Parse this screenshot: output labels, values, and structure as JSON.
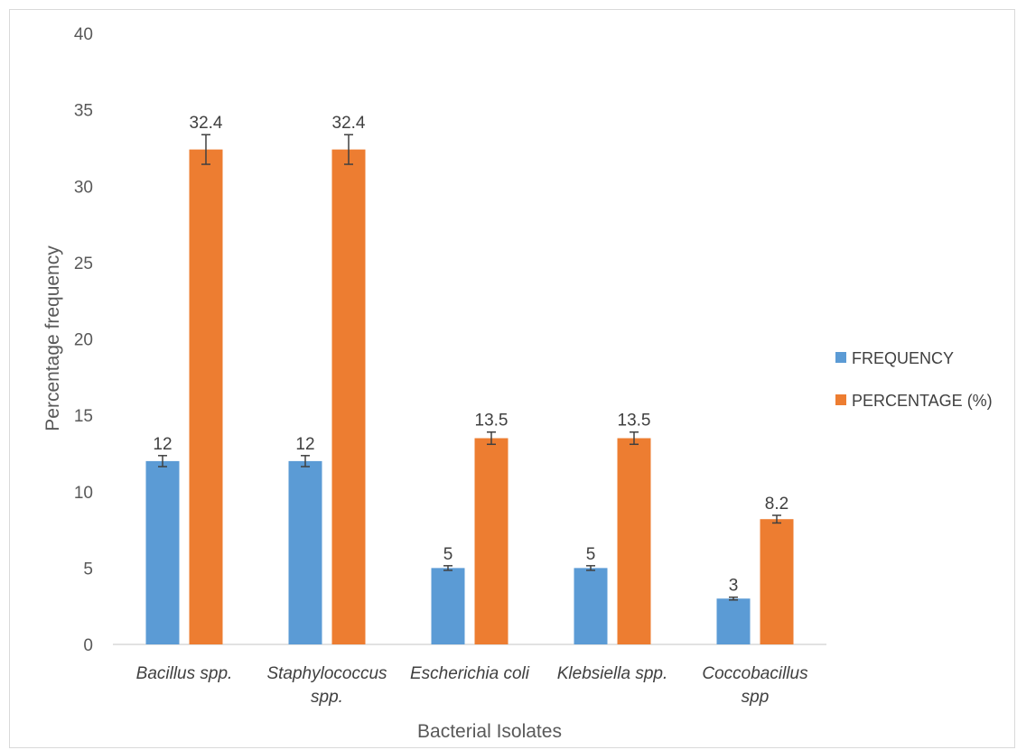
{
  "chart_data": {
    "type": "bar",
    "title": "",
    "xlabel": "Bacterial Isolates",
    "ylabel": "Percentage frequency",
    "ylim": [
      0,
      40
    ],
    "yticks": [
      0,
      5,
      10,
      15,
      20,
      25,
      30,
      35,
      40
    ],
    "grid": false,
    "legend_position": "right",
    "error_bars": true,
    "categories": [
      [
        "Bacillus spp."
      ],
      [
        "Staphylococcus",
        "spp."
      ],
      [
        "Escherichia coli"
      ],
      [
        "Klebsiella spp."
      ],
      [
        "Coccobacillus",
        "spp"
      ]
    ],
    "series": [
      {
        "name": "FREQUENCY",
        "color": "#5b9bd5",
        "values": [
          12,
          12,
          5,
          5,
          3
        ],
        "errors": [
          0.36,
          0.36,
          0.15,
          0.15,
          0.09
        ],
        "labels": [
          "12",
          "12",
          "5",
          "5",
          "3"
        ]
      },
      {
        "name": "PERCENTAGE (%)",
        "color": "#ed7d31",
        "values": [
          32.4,
          32.4,
          13.5,
          13.5,
          8.2
        ],
        "errors": [
          0.97,
          0.97,
          0.4,
          0.4,
          0.25
        ],
        "labels": [
          "32.4",
          "32.4",
          "13.5",
          "13.5",
          "8.2"
        ]
      }
    ]
  }
}
